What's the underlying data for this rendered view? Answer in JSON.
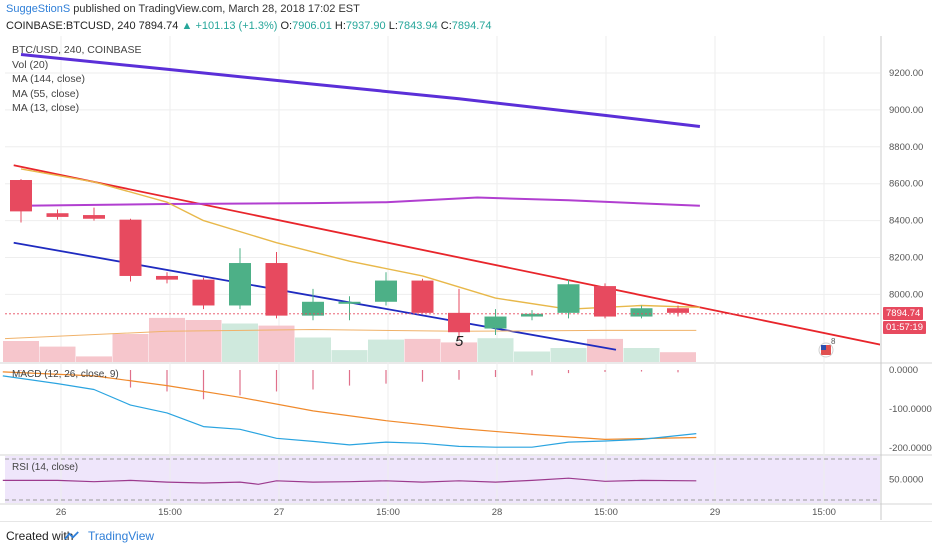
{
  "header": {
    "author": "SuggeStionS",
    "published_text": "published on TradingView.com, March 28, 2018 17:02 EST",
    "symbol": "COINBASE:BTCUSD, 240",
    "last": "7894.74",
    "change": "+101.13 (+1.3%)",
    "o_label": "O:",
    "o": "7906.01",
    "h_label": "H:",
    "h": "7937.90",
    "l_label": "L:",
    "l": "7843.94",
    "c_label": "C:",
    "c": "7894.74"
  },
  "legend": [
    "BTC/USD, 240, COINBASE",
    "Vol (20)",
    "MA (144, close)",
    "MA (55, close)",
    "MA (13, close)"
  ],
  "macd_title": "MACD (12, 26, close, 9)",
  "rsi_title": "RSI (14, close)",
  "price_marker": "7894.74",
  "time_marker": "01:57:19",
  "annotation": "5",
  "footer": {
    "created": "Created with",
    "brand": "TradingView"
  },
  "colors": {
    "up": "#4db087",
    "down": "#e74a5f",
    "ma144": "#5b2fd8",
    "ma55": "#b13fd0",
    "ma13": "#e8b84a",
    "trend_red": "#e8252b",
    "trend_blue": "#1f2bc0",
    "macd": "#2aa4e0",
    "signal": "#f08a2c"
  },
  "chart_data": [
    {
      "type": "candlestick",
      "title": "BTC/USD, 240, COINBASE",
      "y_ticks": [
        "9200.00",
        "9000.00",
        "8800.00",
        "8600.00",
        "8400.00",
        "8200.00",
        "8000.00"
      ],
      "x_ticks": [
        "26",
        "15:00",
        "27",
        "15:00",
        "28",
        "15:00",
        "29",
        "15:00"
      ],
      "ylim": [
        7700,
        9400
      ],
      "candles": [
        {
          "o": 8620,
          "h": 8625,
          "l": 8390,
          "c": 8450
        },
        {
          "o": 8440,
          "h": 8460,
          "l": 8405,
          "c": 8420
        },
        {
          "o": 8430,
          "h": 8470,
          "l": 8400,
          "c": 8410
        },
        {
          "o": 8405,
          "h": 8410,
          "l": 8070,
          "c": 8100
        },
        {
          "o": 8100,
          "h": 8120,
          "l": 8060,
          "c": 8080
        },
        {
          "o": 8080,
          "h": 8090,
          "l": 7920,
          "c": 7940
        },
        {
          "o": 7940,
          "h": 8250,
          "l": 7920,
          "c": 8170
        },
        {
          "o": 8170,
          "h": 8230,
          "l": 7870,
          "c": 7885
        },
        {
          "o": 7885,
          "h": 8030,
          "l": 7860,
          "c": 7960
        },
        {
          "o": 7950,
          "h": 7990,
          "l": 7860,
          "c": 7960
        },
        {
          "o": 7960,
          "h": 8120,
          "l": 7940,
          "c": 8075
        },
        {
          "o": 8075,
          "h": 8085,
          "l": 7900,
          "c": 7900
        },
        {
          "o": 7900,
          "h": 8030,
          "l": 7750,
          "c": 7795
        },
        {
          "o": 7815,
          "h": 7920,
          "l": 7780,
          "c": 7880
        },
        {
          "o": 7880,
          "h": 7915,
          "l": 7860,
          "c": 7895
        },
        {
          "o": 7900,
          "h": 8080,
          "l": 7870,
          "c": 8055
        },
        {
          "o": 8045,
          "h": 8060,
          "l": 7870,
          "c": 7880
        },
        {
          "o": 7880,
          "h": 7940,
          "l": 7870,
          "c": 7925
        },
        {
          "o": 7925,
          "h": 7940,
          "l": 7880,
          "c": 7900
        }
      ],
      "ma144": [
        [
          0,
          9300
        ],
        [
          4,
          9220
        ],
        [
          8,
          9140
        ],
        [
          12,
          9060
        ],
        [
          16,
          8970
        ],
        [
          18.6,
          8910
        ]
      ],
      "ma55": [
        [
          0,
          8480
        ],
        [
          4,
          8490
        ],
        [
          8,
          8495
        ],
        [
          10,
          8500
        ],
        [
          12.5,
          8525
        ],
        [
          15,
          8510
        ],
        [
          18.6,
          8480
        ]
      ],
      "ma13": [
        [
          0,
          8680
        ],
        [
          2,
          8610
        ],
        [
          4,
          8500
        ],
        [
          5,
          8400
        ],
        [
          7,
          8280
        ],
        [
          9,
          8180
        ],
        [
          11,
          8100
        ],
        [
          13,
          7980
        ],
        [
          15,
          7920
        ],
        [
          17,
          7940
        ],
        [
          18.6,
          7930
        ]
      ],
      "trend_red": [
        [
          -0.2,
          8700
        ],
        [
          23.6,
          7725
        ]
      ],
      "trend_blue": [
        [
          -0.2,
          8280
        ],
        [
          16.3,
          7700
        ]
      ],
      "volume": [
        {
          "v": 0.3,
          "dir": "down"
        },
        {
          "v": 0.22,
          "dir": "down"
        },
        {
          "v": 0.08,
          "dir": "down"
        },
        {
          "v": 0.4,
          "dir": "down"
        },
        {
          "v": 0.63,
          "dir": "down"
        },
        {
          "v": 0.6,
          "dir": "down"
        },
        {
          "v": 0.55,
          "dir": "up"
        },
        {
          "v": 0.52,
          "dir": "down"
        },
        {
          "v": 0.35,
          "dir": "up"
        },
        {
          "v": 0.17,
          "dir": "up"
        },
        {
          "v": 0.32,
          "dir": "up"
        },
        {
          "v": 0.33,
          "dir": "down"
        },
        {
          "v": 0.28,
          "dir": "down"
        },
        {
          "v": 0.34,
          "dir": "up"
        },
        {
          "v": 0.15,
          "dir": "up"
        },
        {
          "v": 0.2,
          "dir": "up"
        },
        {
          "v": 0.33,
          "dir": "down"
        },
        {
          "v": 0.2,
          "dir": "up"
        },
        {
          "v": 0.14,
          "dir": "down"
        }
      ]
    },
    {
      "type": "line",
      "title": "MACD (12, 26, close, 9)",
      "y_ticks": [
        "0.0000",
        "-100.0000",
        "-200.0000"
      ],
      "ylim": [
        -210,
        5
      ],
      "macd": [
        [
          -0.5,
          -15
        ],
        [
          1,
          -35
        ],
        [
          2,
          -50
        ],
        [
          3,
          -90
        ],
        [
          4,
          -110
        ],
        [
          5,
          -145
        ],
        [
          6,
          -152
        ],
        [
          7,
          -175
        ],
        [
          8,
          -183
        ],
        [
          9,
          -192
        ],
        [
          10,
          -185
        ],
        [
          11,
          -188
        ],
        [
          12,
          -196
        ],
        [
          13,
          -198
        ],
        [
          14,
          -198
        ],
        [
          15,
          -185
        ],
        [
          16,
          -182
        ],
        [
          17,
          -178
        ],
        [
          18.5,
          -163
        ]
      ],
      "signal": [
        [
          -0.5,
          -5
        ],
        [
          2,
          -15
        ],
        [
          4,
          -40
        ],
        [
          6,
          -70
        ],
        [
          8,
          -105
        ],
        [
          10,
          -130
        ],
        [
          12,
          -150
        ],
        [
          14,
          -165
        ],
        [
          16,
          -178
        ],
        [
          18.5,
          -173
        ]
      ],
      "histogram": [
        {
          "i": 0,
          "v": -2
        },
        {
          "i": 3,
          "v": -45
        },
        {
          "i": 4,
          "v": -55
        },
        {
          "i": 5,
          "v": -75
        },
        {
          "i": 6,
          "v": -65
        },
        {
          "i": 7,
          "v": -55
        },
        {
          "i": 8,
          "v": -50
        },
        {
          "i": 9,
          "v": -40
        },
        {
          "i": 10,
          "v": -35
        },
        {
          "i": 11,
          "v": -30
        },
        {
          "i": 12,
          "v": -25
        },
        {
          "i": 13,
          "v": -18
        },
        {
          "i": 14,
          "v": -14
        },
        {
          "i": 15,
          "v": -8
        },
        {
          "i": 16,
          "v": -5
        },
        {
          "i": 17,
          "v": -4
        },
        {
          "i": 18,
          "v": -6
        }
      ]
    },
    {
      "type": "line",
      "title": "RSI (14, close)",
      "y_ticks": [
        "50.0000"
      ],
      "ylim": [
        25,
        75
      ],
      "rsi": [
        [
          -0.5,
          48
        ],
        [
          1,
          48
        ],
        [
          2,
          45
        ],
        [
          3,
          48
        ],
        [
          4,
          44
        ],
        [
          5,
          42
        ],
        [
          6,
          44
        ],
        [
          6.5,
          39
        ],
        [
          7,
          47
        ],
        [
          8,
          44
        ],
        [
          9,
          45
        ],
        [
          10,
          47
        ],
        [
          11,
          44
        ],
        [
          12,
          47
        ],
        [
          13,
          44
        ],
        [
          14,
          48
        ],
        [
          15,
          53
        ],
        [
          16,
          46
        ],
        [
          17,
          48
        ],
        [
          18.5,
          47
        ]
      ]
    }
  ]
}
